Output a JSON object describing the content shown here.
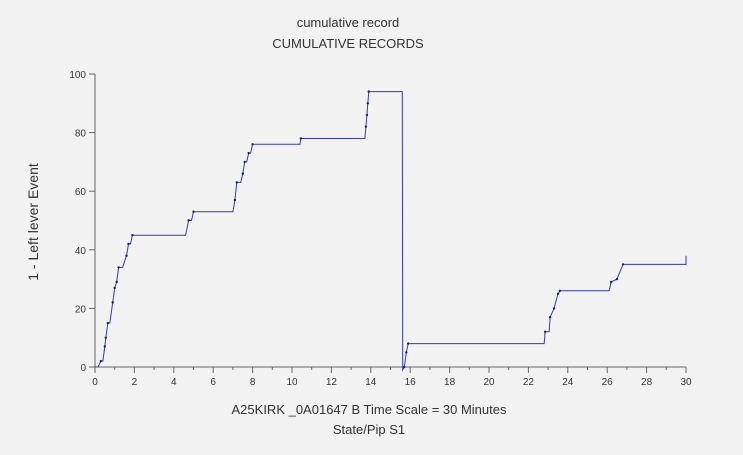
{
  "chart_data": {
    "type": "line",
    "title": "cumulative record",
    "subtitle": "CUMULATIVE RECORDS",
    "ylabel": "1 - Left lever  Event",
    "xlabel_line1": "A25KIRK _0A01647 B   Time Scale = 30 Minutes",
    "xlabel_line2": "State/Pip S1",
    "xlim": [
      0,
      30
    ],
    "ylim": [
      0,
      100
    ],
    "x_ticks": [
      0,
      2,
      4,
      6,
      8,
      10,
      12,
      14,
      16,
      18,
      20,
      22,
      24,
      26,
      28,
      30
    ],
    "y_ticks": [
      0,
      20,
      40,
      60,
      80,
      100
    ],
    "line_color": "#3a3aa8",
    "series": [
      {
        "x": [
          0,
          0.15,
          0.3,
          0.4,
          0.5,
          0.55,
          0.65,
          0.75,
          0.9,
          1.0,
          1.1,
          1.2,
          1.4,
          1.6,
          1.7,
          1.8,
          1.9,
          2.0,
          2.3,
          4.6,
          4.75,
          4.9,
          5.0,
          7.0,
          7.1,
          7.2,
          7.4,
          7.5,
          7.6,
          7.7,
          7.8,
          7.9,
          8.0,
          10.4,
          10.45,
          13.7,
          13.75,
          13.8,
          13.85,
          13.9,
          15.6,
          15.62,
          15.7,
          15.8,
          15.9,
          22.8,
          22.85,
          23.05,
          23.1,
          23.3,
          23.5,
          23.6,
          26.1,
          26.2,
          26.5,
          26.8,
          30.0,
          30.0
        ],
        "y": [
          0,
          0,
          2,
          2,
          7,
          10,
          15,
          15,
          22,
          27,
          29,
          34,
          34,
          38,
          42,
          42,
          45,
          45,
          45,
          45,
          50,
          50,
          53,
          53,
          57,
          63,
          63,
          66,
          70,
          70,
          73,
          73,
          76,
          76,
          78,
          78,
          82,
          86,
          90,
          94,
          94,
          -1,
          0,
          5,
          8,
          8,
          12,
          12,
          17,
          20,
          25,
          26,
          26,
          29,
          30,
          35,
          35,
          38
        ]
      }
    ]
  }
}
